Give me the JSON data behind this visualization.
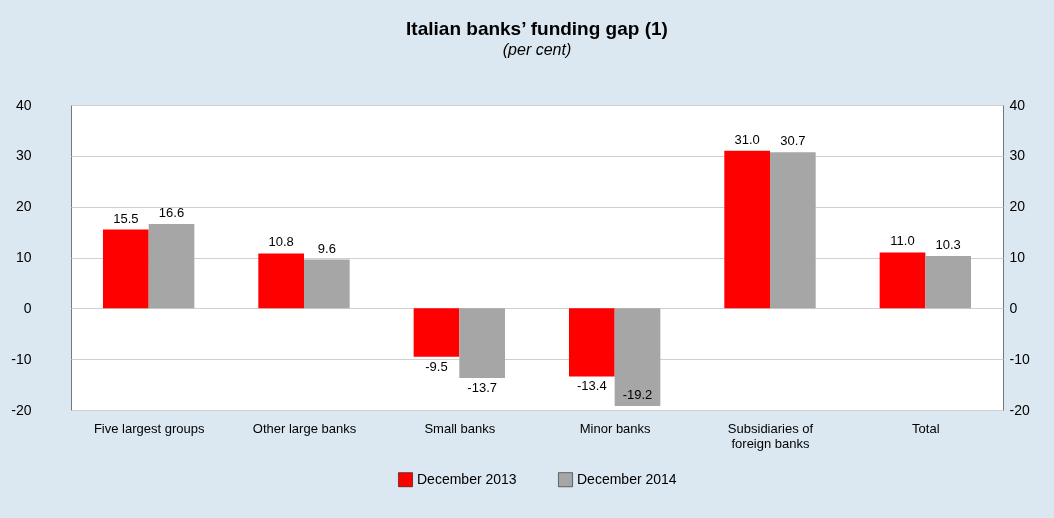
{
  "chart_data": {
    "type": "bar",
    "title": "Italian banks’ funding gap (1)",
    "subtitle": "(per cent)",
    "categories": [
      "Five largest groups",
      "Other large banks",
      "Small banks",
      "Minor banks",
      "Subsidiaries of foreign banks",
      "Total"
    ],
    "series": [
      {
        "name": "December 2013",
        "color": "#ff0000",
        "values": [
          15.5,
          10.8,
          -9.5,
          -13.4,
          31.0,
          11.0
        ],
        "value_labels": [
          "15.5",
          "10.8",
          "-9.5",
          "-13.4",
          "31.0",
          "11.0"
        ]
      },
      {
        "name": "December 2014",
        "color": "#a6a6a6",
        "values": [
          16.6,
          9.6,
          -13.7,
          -19.2,
          30.7,
          10.3
        ],
        "value_labels": [
          "16.6",
          "9.6",
          "-13.7",
          "-19.2",
          "30.7",
          "10.3"
        ]
      }
    ],
    "ylim": [
      -20,
      40
    ],
    "yticks": [
      -20,
      -10,
      0,
      10,
      20,
      30,
      40
    ],
    "y2lim": [
      -20,
      40
    ],
    "y2ticks": [
      -20,
      -10,
      0,
      10,
      20,
      30,
      40
    ],
    "grid": "y",
    "legend": "bottom"
  }
}
